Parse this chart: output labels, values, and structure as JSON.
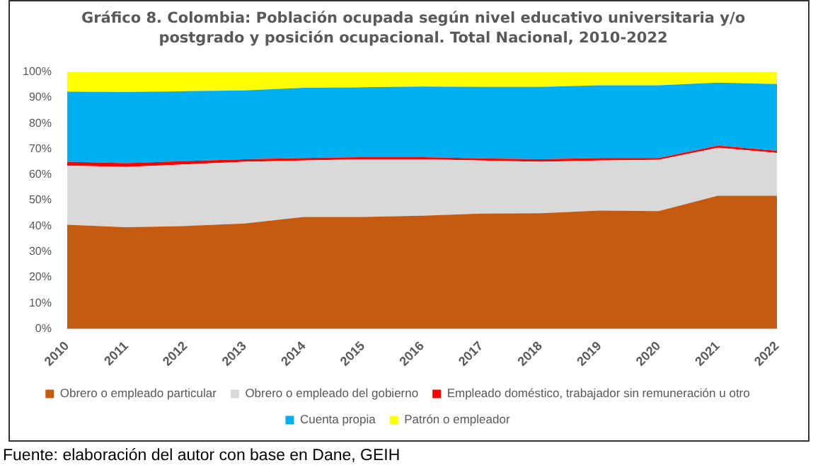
{
  "chart_data": {
    "type": "area",
    "stacked": true,
    "title": "Gráfico 8. Colombia: Población ocupada según nivel educativo universitaria y/o postgrado y posición ocupacional. Total Nacional, 2010-2022",
    "categories": [
      "2010",
      "2011",
      "2012",
      "2013",
      "2014",
      "2015",
      "2016",
      "2017",
      "2018",
      "2019",
      "2020",
      "2021",
      "2022"
    ],
    "series": [
      {
        "name": "Obrero o empleado particular",
        "color": "#c55a11",
        "values": [
          40.5,
          39.5,
          40,
          41,
          43.5,
          43.5,
          44,
          44.8,
          45,
          46,
          45.8,
          51.8,
          51.8
        ]
      },
      {
        "name": "Obrero o empleado del gobierno",
        "color": "#d9d9d9",
        "values": [
          23,
          23.5,
          24,
          24,
          22,
          22.5,
          22,
          20.7,
          20,
          19.5,
          20,
          18.7,
          16.7
        ]
      },
      {
        "name": "Empleado doméstico, trabajador sin remuneración u otro",
        "color": "#ff0000",
        "values": [
          1.5,
          1.5,
          1.3,
          1,
          1,
          0.8,
          0.8,
          0.8,
          1,
          1,
          0.7,
          0.8,
          0.8
        ]
      },
      {
        "name": "Cuenta propia",
        "color": "#00b0f0",
        "values": [
          27.3,
          27.7,
          27.2,
          26.8,
          27.3,
          27.2,
          27.5,
          27.9,
          28.2,
          28.3,
          28.3,
          24.5,
          26
        ]
      },
      {
        "name": "Patrón o empleador",
        "color": "#ffff00",
        "values": [
          7.7,
          7.8,
          7.5,
          7.2,
          6.2,
          6,
          5.7,
          5.8,
          5.8,
          5.2,
          5.2,
          4.2,
          4.7
        ]
      }
    ],
    "ylim": [
      0,
      100
    ],
    "yticks": [
      {
        "value": 0,
        "label": "0%"
      },
      {
        "value": 10,
        "label": "10%"
      },
      {
        "value": 20,
        "label": "20%"
      },
      {
        "value": 30,
        "label": "30%"
      },
      {
        "value": 40,
        "label": "40%"
      },
      {
        "value": 50,
        "label": "50%"
      },
      {
        "value": 60,
        "label": "60%"
      },
      {
        "value": 70,
        "label": "70%"
      },
      {
        "value": 80,
        "label": "80%"
      },
      {
        "value": 90,
        "label": "90%"
      },
      {
        "value": 100,
        "label": "100%"
      }
    ],
    "grid": false,
    "legend": "bottom",
    "annotations": [
      "Fuente: elaboración del autor con base en Dane, GEIH"
    ]
  }
}
